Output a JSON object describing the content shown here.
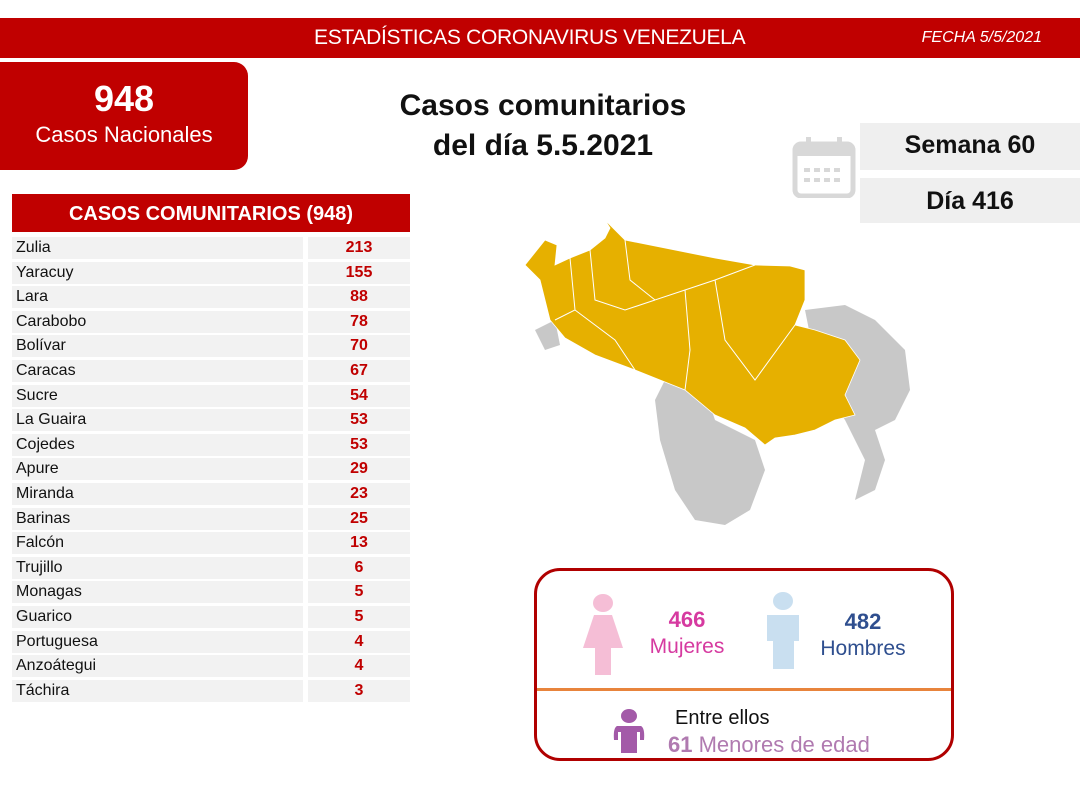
{
  "header": {
    "title": "ESTADÍSTICAS CORONAVIRUS VENEZUELA",
    "date": "FECHA 5/5/2021"
  },
  "national": {
    "count": "948",
    "label": "Casos Nacionales"
  },
  "main_title": {
    "line1": "Casos comunitarios",
    "line2": "del día 5.5.2021"
  },
  "calendar": {
    "icon": "calendar-icon",
    "week": "Semana 60",
    "day": "Día 416"
  },
  "table": {
    "header": "CASOS COMUNITARIOS (948)",
    "rows": [
      {
        "state": "Zulia",
        "cases": "213"
      },
      {
        "state": "Yaracuy",
        "cases": "155"
      },
      {
        "state": "Lara",
        "cases": "88"
      },
      {
        "state": "Carabobo",
        "cases": "78"
      },
      {
        "state": "Bolívar",
        "cases": "70"
      },
      {
        "state": "Caracas",
        "cases": "67"
      },
      {
        "state": "Sucre",
        "cases": "54"
      },
      {
        "state": "La Guaira",
        "cases": "53"
      },
      {
        "state": "Cojedes",
        "cases": "53"
      },
      {
        "state": "Apure",
        "cases": "29"
      },
      {
        "state": "Miranda",
        "cases": "23"
      },
      {
        "state": "Barinas",
        "cases": "25"
      },
      {
        "state": "Falcón",
        "cases": "13"
      },
      {
        "state": "Trujillo",
        "cases": "6"
      },
      {
        "state": "Monagas",
        "cases": "5"
      },
      {
        "state": "Guarico",
        "cases": "5"
      },
      {
        "state": "Portuguesa",
        "cases": "4"
      },
      {
        "state": "Anzoátegui",
        "cases": "4"
      },
      {
        "state": "Táchira",
        "cases": "3"
      }
    ]
  },
  "map": {
    "affected_color": "#e6b000",
    "unaffected_color": "#c8c8c8"
  },
  "gender": {
    "women_count": "466",
    "women_label": "Mujeres",
    "women_color": "#d63aa0",
    "men_count": "482",
    "men_label": "Hombres",
    "men_color": "#2f4f8f",
    "minors_intro": "Entre ellos",
    "minors_count": "61",
    "minors_label": "Menores de edad",
    "minors_color": "#b07ab0"
  }
}
